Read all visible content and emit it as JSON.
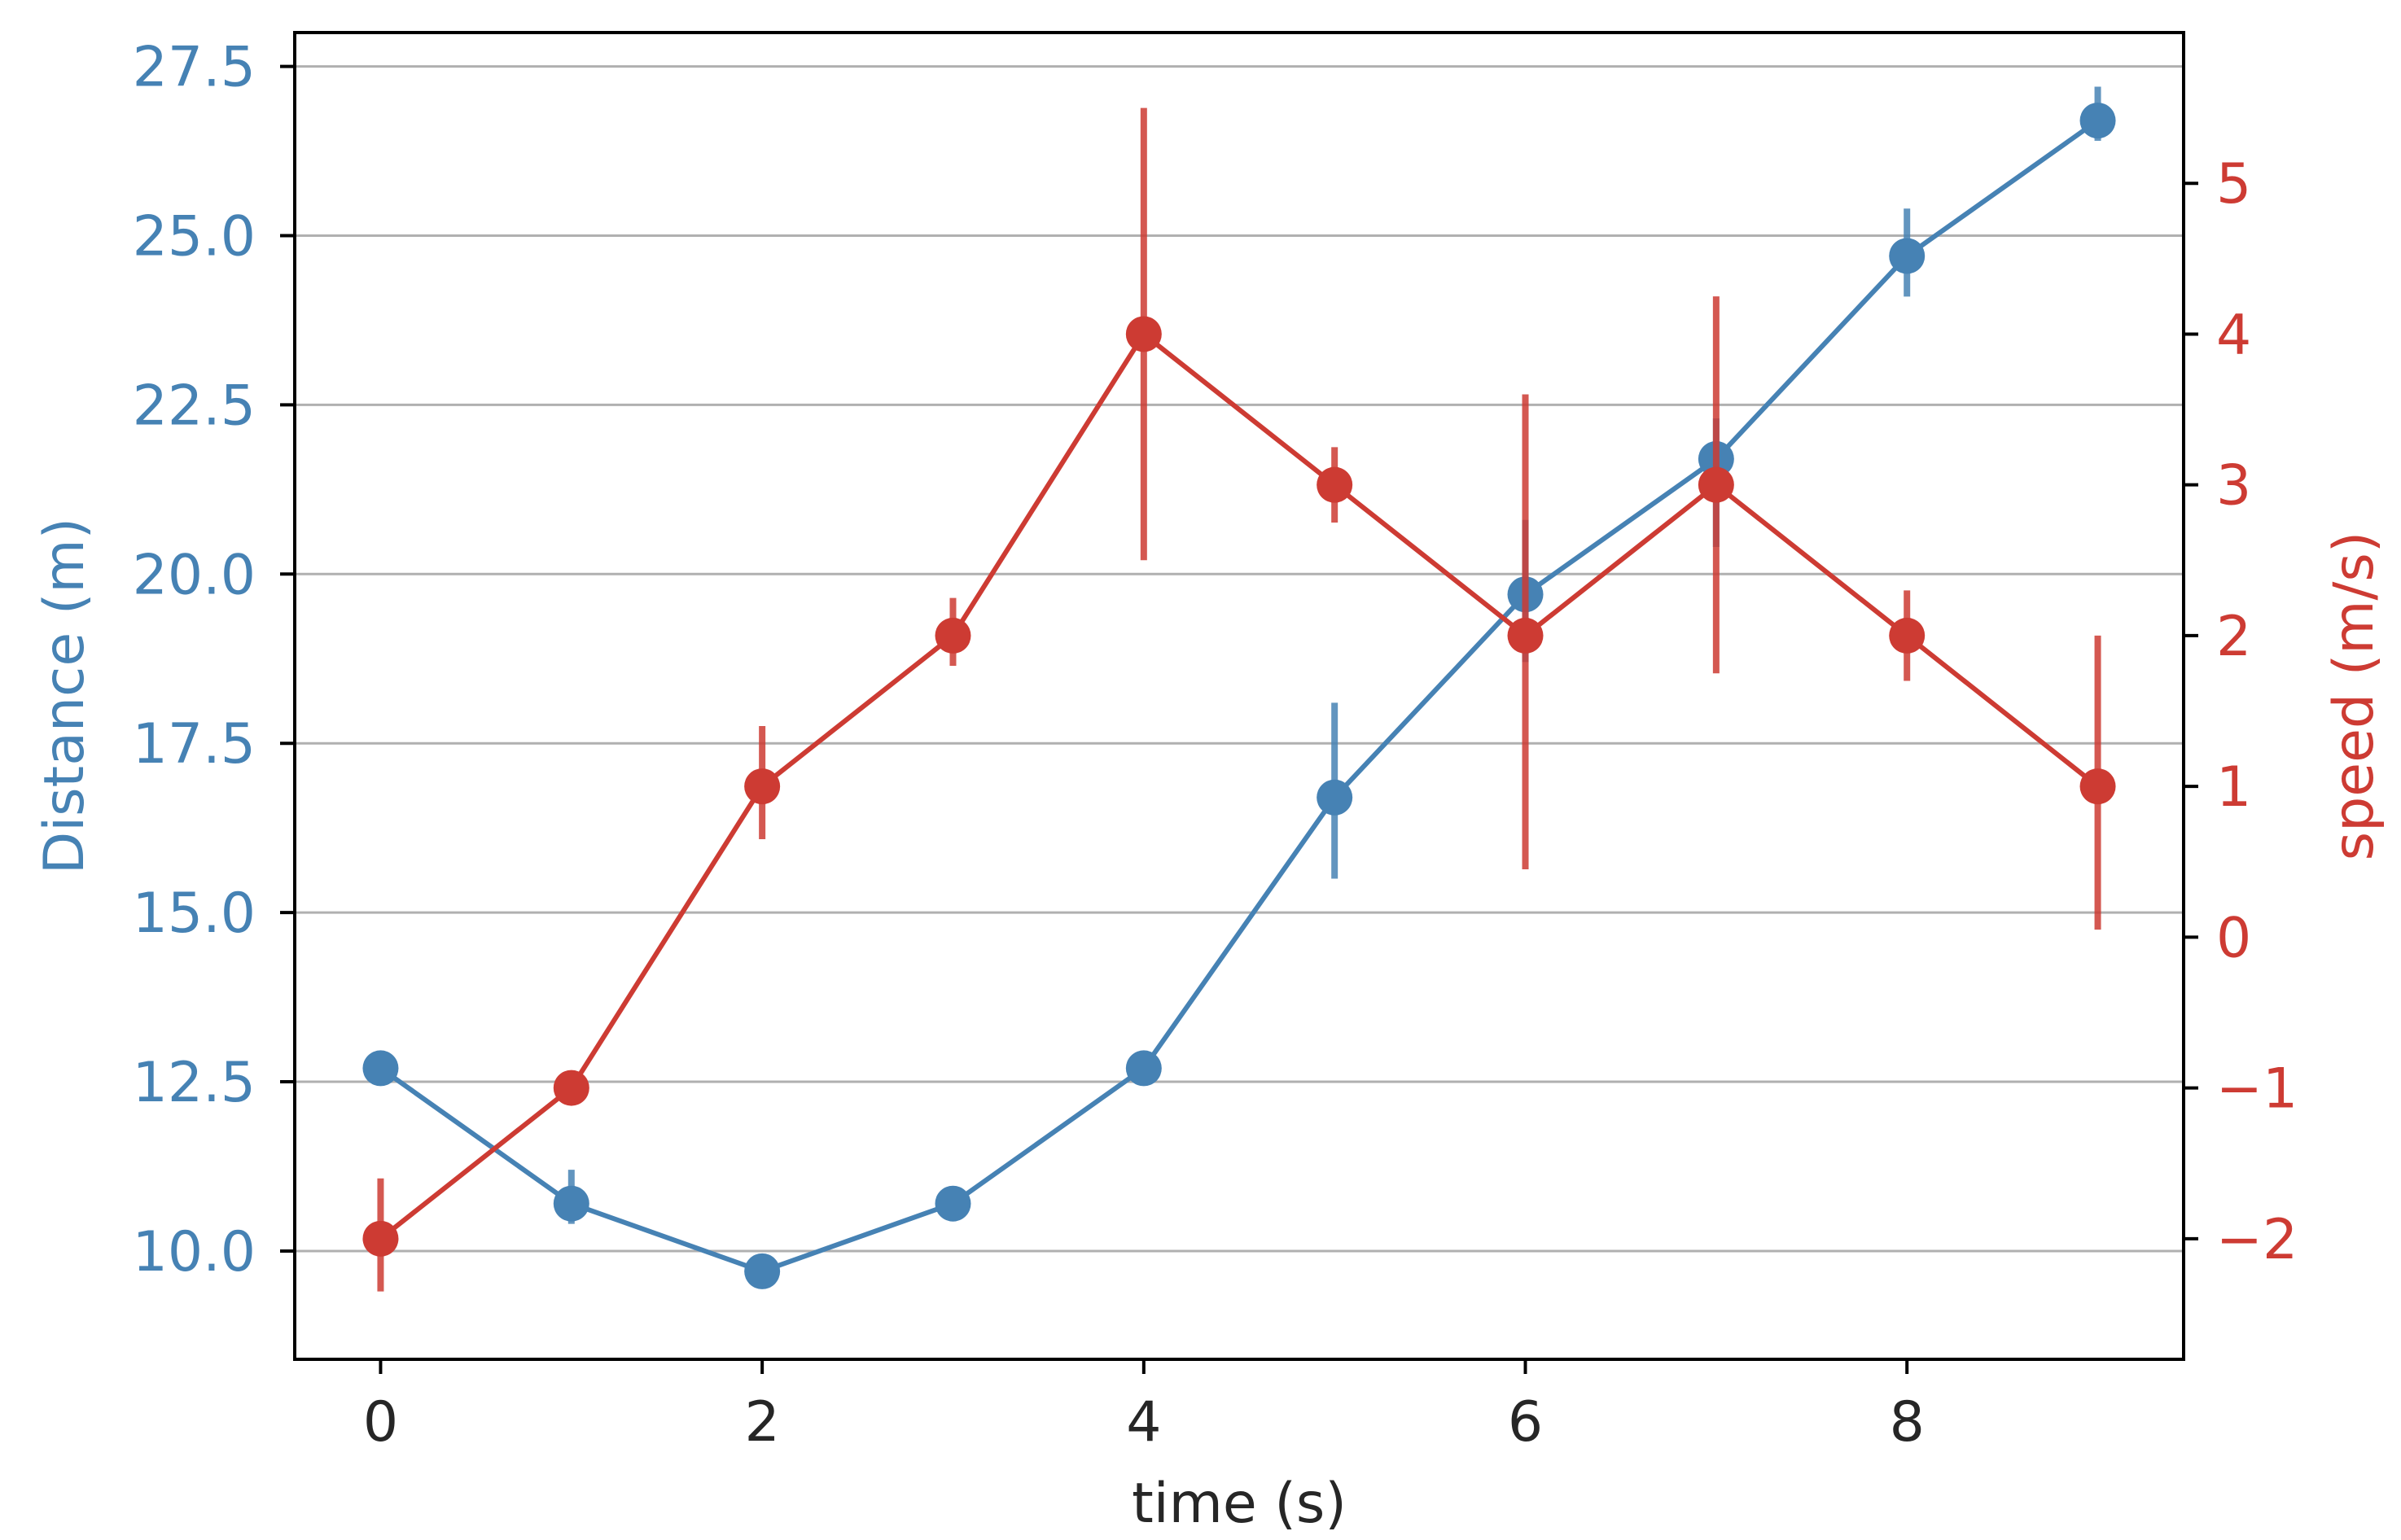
{
  "chart_data": {
    "type": "line",
    "title": "",
    "xlabel": "time (s)",
    "ylabel_left": "Distance (m)",
    "ylabel_right": "speed (m/s)",
    "x": [
      0,
      1,
      2,
      3,
      4,
      5,
      6,
      7,
      8,
      9
    ],
    "xlim": [
      -0.45,
      9.45
    ],
    "x_ticks": [
      0,
      2,
      4,
      6,
      8
    ],
    "x_tick_labels": [
      "0",
      "2",
      "4",
      "6",
      "8"
    ],
    "ylim_left": [
      8.4,
      28.0
    ],
    "ylim_right": [
      -2.8,
      6.0
    ],
    "y_ticks_left": [
      10.0,
      12.5,
      15.0,
      17.5,
      20.0,
      22.5,
      25.0,
      27.5
    ],
    "y_tick_labels_left": [
      "10.0",
      "12.5",
      "15.0",
      "17.5",
      "20.0",
      "22.5",
      "25.0",
      "27.5"
    ],
    "y_ticks_right": [
      -2,
      -1,
      0,
      1,
      2,
      3,
      4,
      5
    ],
    "y_tick_labels_right": [
      "−2",
      "−1",
      "0",
      "1",
      "2",
      "3",
      "4",
      "5"
    ],
    "grid": "horizontal",
    "series": [
      {
        "axis": "left",
        "color": "#4682b4",
        "values": [
          12.7,
          10.7,
          9.7,
          10.7,
          12.7,
          16.7,
          19.7,
          21.7,
          24.7,
          26.7
        ],
        "yerr_low": [
          12.5,
          10.4,
          9.5,
          10.6,
          12.5,
          15.5,
          18.7,
          20.4,
          24.1,
          26.4
        ],
        "yerr_high": [
          12.9,
          11.2,
          9.9,
          10.9,
          12.9,
          18.1,
          20.8,
          22.3,
          25.4,
          27.2
        ]
      },
      {
        "axis": "right",
        "color": "#cd3b33",
        "values": [
          -2,
          -1,
          1,
          2,
          4,
          3,
          2,
          3,
          2,
          1
        ],
        "yerr_low": [
          -2.35,
          -1.05,
          0.65,
          1.8,
          2.5,
          2.75,
          0.45,
          1.75,
          1.7,
          0.05
        ],
        "yerr_high": [
          -1.6,
          -0.95,
          1.4,
          2.25,
          5.5,
          3.25,
          3.6,
          4.25,
          2.3,
          2.0
        ]
      }
    ]
  }
}
